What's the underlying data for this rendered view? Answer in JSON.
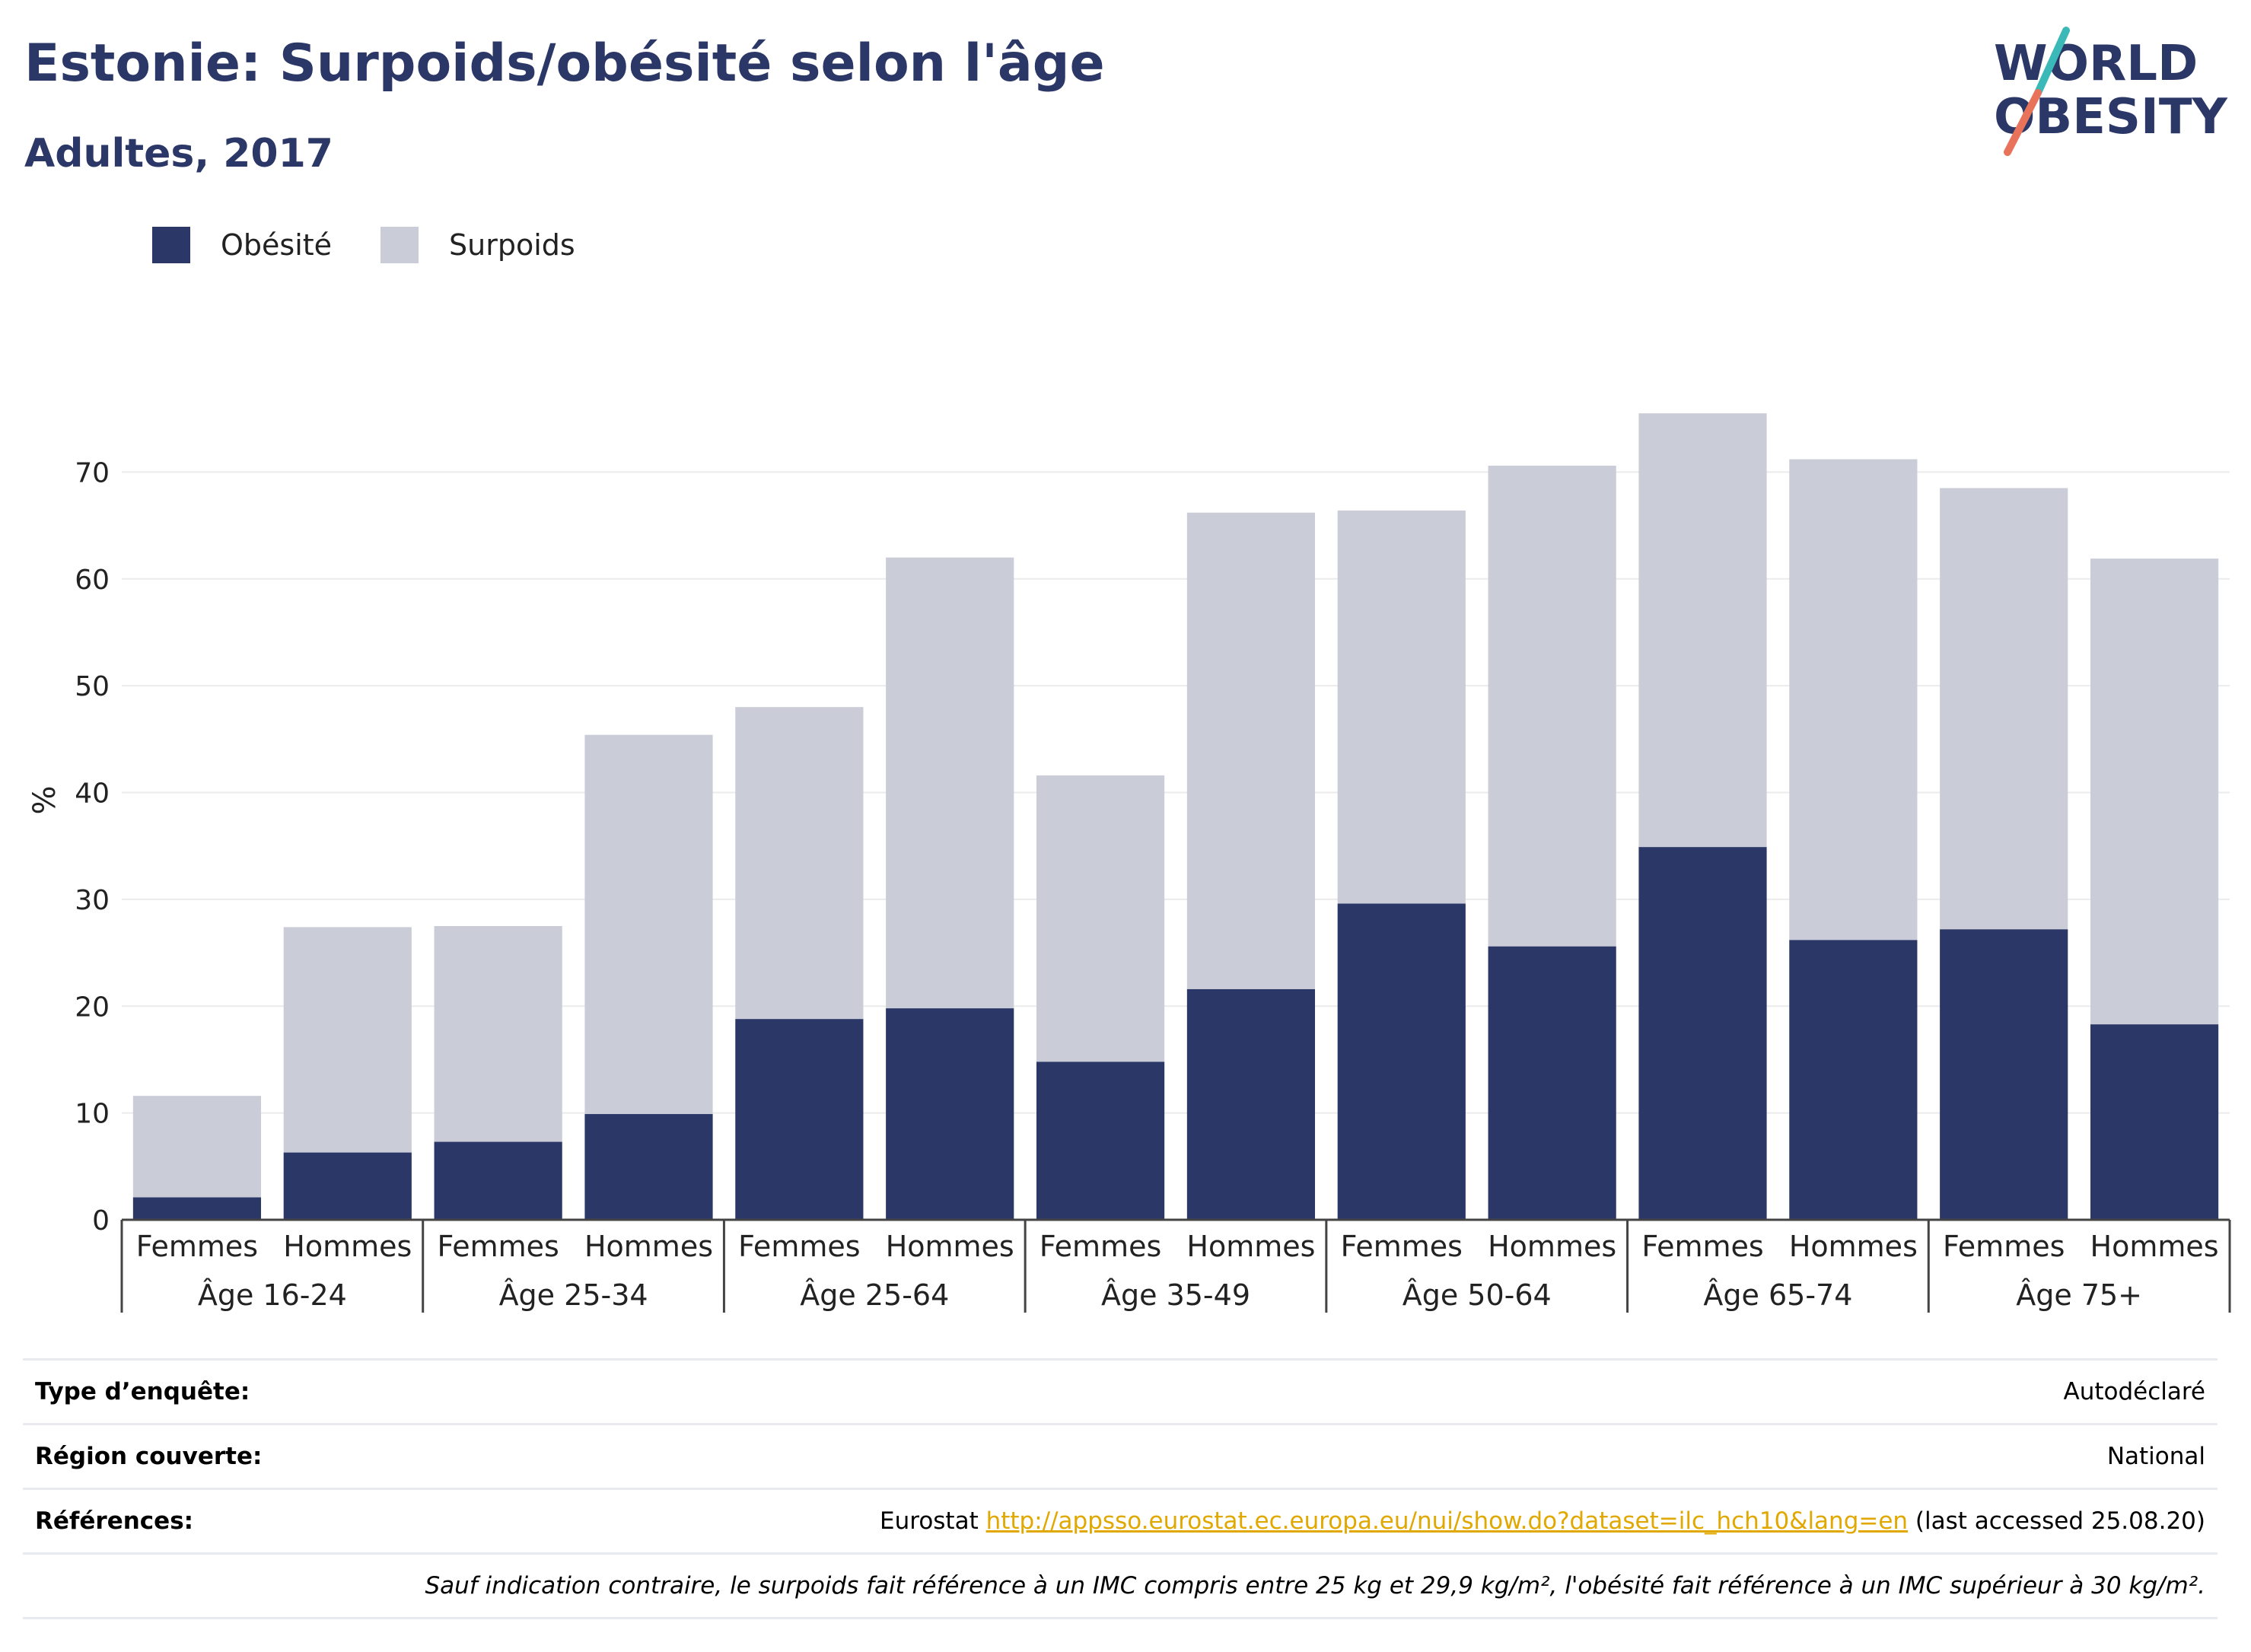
{
  "title": "Estonie: Surpoids/obésité selon l'âge",
  "subtitle": "Adultes, 2017",
  "logo": {
    "line1": "WORLD",
    "line2": "OBESITY",
    "colors": [
      "#2b3766",
      "#3bb8b8",
      "#e8735a"
    ]
  },
  "legend": [
    {
      "name": "Obésité",
      "color": "#2b3766"
    },
    {
      "name": "Surpoids",
      "color": "#cacdd8"
    }
  ],
  "chart_data": {
    "type": "bar",
    "stacked": true,
    "ylabel": "%",
    "ylim": [
      0,
      80
    ],
    "yticks": [
      0,
      10,
      20,
      30,
      40,
      50,
      60,
      70
    ],
    "grid": true,
    "legend_position": "top-left",
    "categories": [
      "Femmes",
      "Hommes",
      "Femmes",
      "Hommes",
      "Femmes",
      "Hommes",
      "Femmes",
      "Hommes",
      "Femmes",
      "Hommes",
      "Femmes",
      "Hommes",
      "Femmes",
      "Hommes"
    ],
    "groups": [
      "Âge 16-24",
      "Âge 25-34",
      "Âge 25-64",
      "Âge 35-49",
      "Âge 50-64",
      "Âge 65-74",
      "Âge 75+"
    ],
    "series": [
      {
        "name": "Obésité",
        "color": "#2b3766",
        "values": [
          2.1,
          6.3,
          7.3,
          9.9,
          18.8,
          19.8,
          14.8,
          21.6,
          29.6,
          25.6,
          34.9,
          26.2,
          27.2,
          18.3
        ]
      },
      {
        "name": "Surpoids",
        "color": "#cacdd8",
        "values": [
          9.5,
          21.1,
          20.2,
          35.5,
          29.2,
          42.2,
          26.8,
          44.6,
          36.8,
          45.0,
          40.6,
          45.0,
          41.3,
          43.6
        ]
      }
    ]
  },
  "info": {
    "survey_label": "Type d’enquête:",
    "survey_value": "Autodéclaré",
    "region_label": "Région couverte:",
    "region_value": "National",
    "refs_label": "Références:",
    "refs_prefix": "Eurostat ",
    "refs_link": "http://appsso.eurostat.ec.europa.eu/nui/show.do?dataset=ilc_hch10&lang=en",
    "refs_suffix": " (last accessed 25.08.20)",
    "note": "Sauf indication contraire, le surpoids fait référence à un IMC compris entre 25 kg et 29,9 kg/m², l'obésité fait référence à un IMC supérieur à 30 kg/m²."
  }
}
